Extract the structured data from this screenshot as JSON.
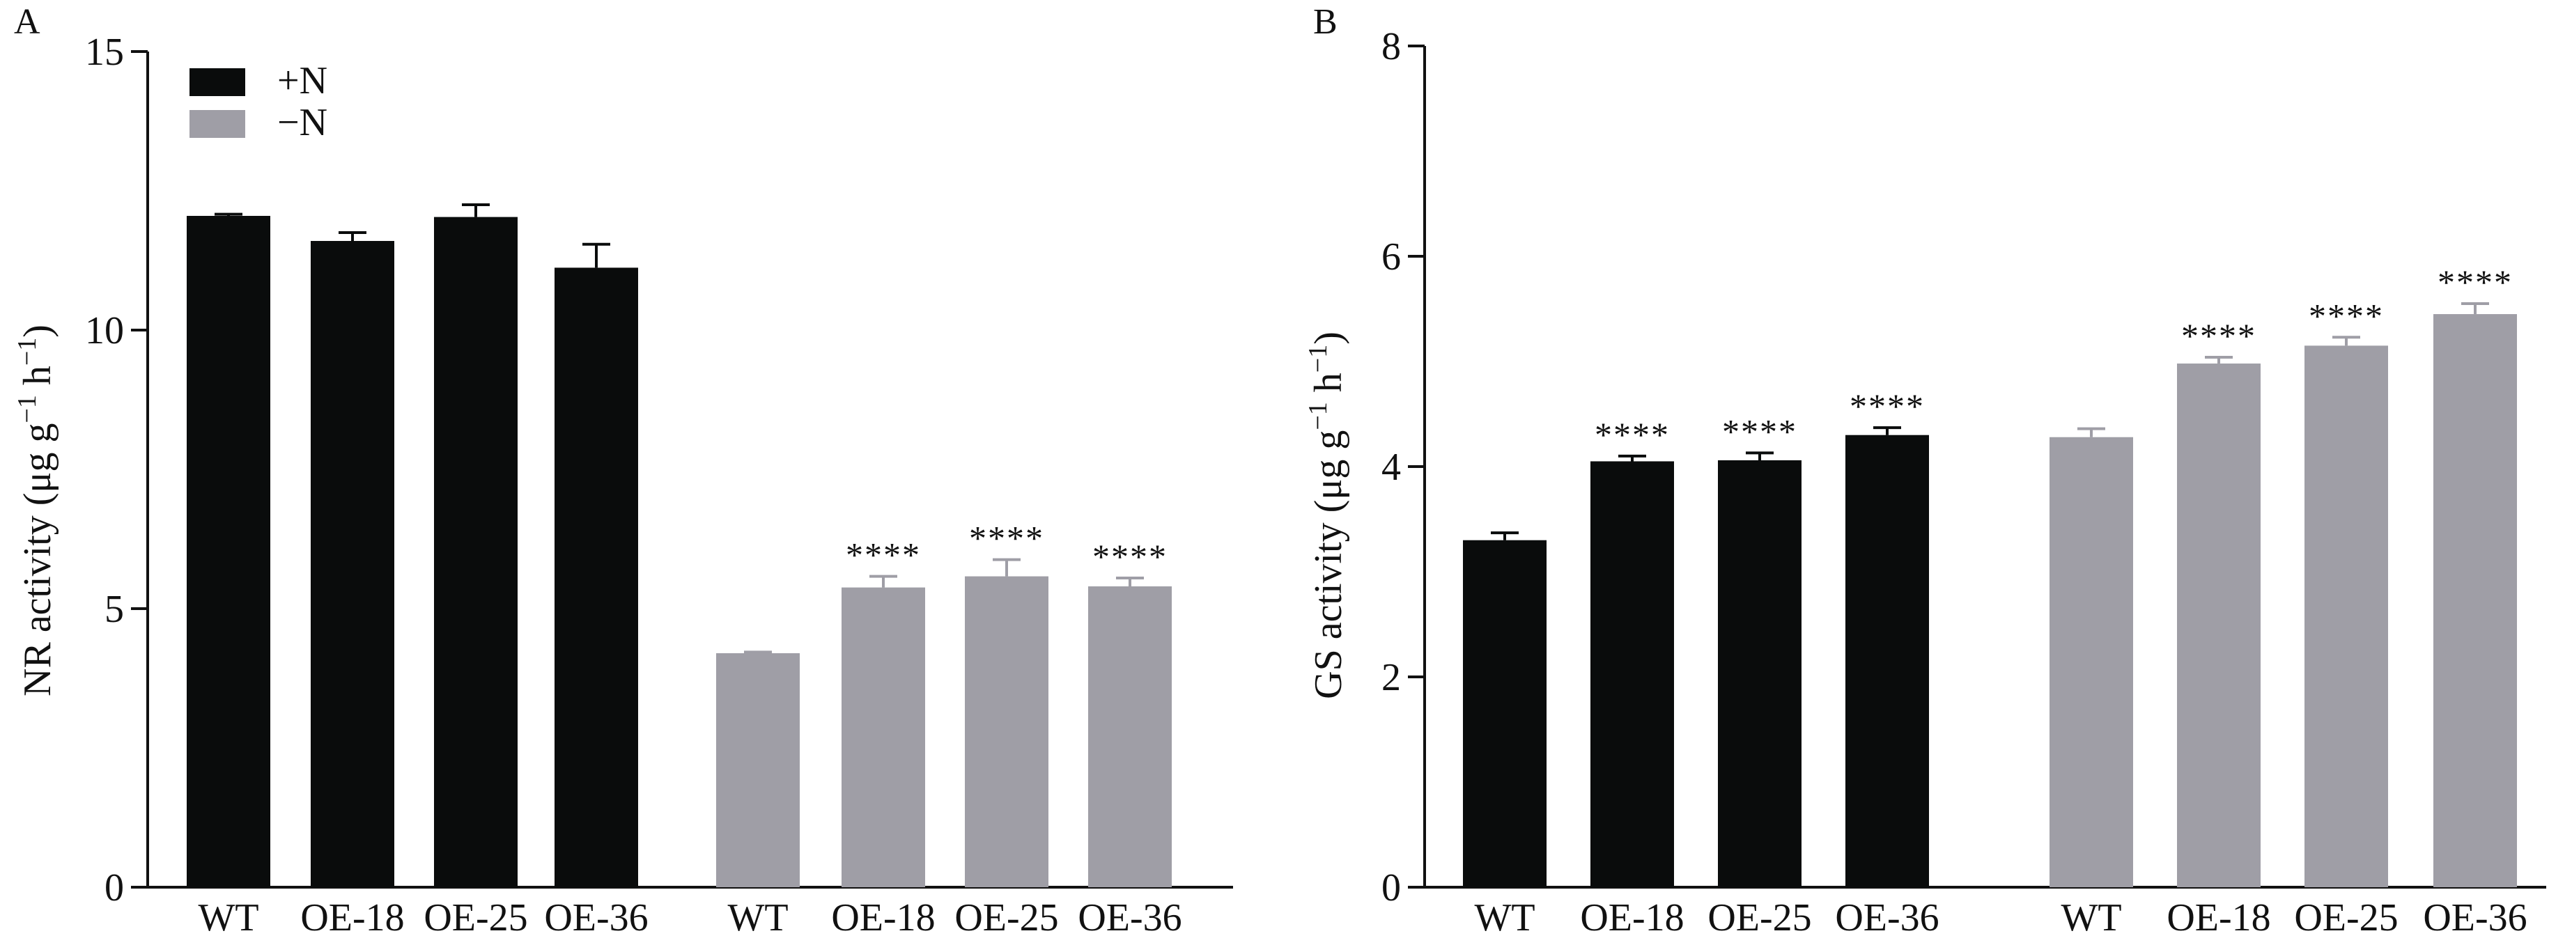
{
  "chart_data": [
    {
      "panel_label": "A",
      "type": "bar",
      "ylabel": "NR activity (μg g⁻¹ h⁻¹)",
      "ylabel_parts": {
        "main": "NR activity (μg g",
        "sup1": "−1",
        "mid": " h",
        "sup2": "−1",
        "end": ")"
      },
      "ylim": [
        0,
        15
      ],
      "yticks": [
        0,
        5,
        10,
        15
      ],
      "ytick_labels": [
        "0",
        "5",
        "10",
        "15"
      ],
      "grid": false,
      "legend_position": "top-left",
      "categories": [
        "WT",
        "OE-18",
        "OE-25",
        "OE-36"
      ],
      "series": [
        {
          "name": "+N",
          "color": "#0a0c0c",
          "values": [
            12.05,
            11.6,
            12.03,
            11.12
          ],
          "errors": [
            0.03,
            0.15,
            0.22,
            0.42
          ],
          "significance": [
            "",
            "",
            "",
            ""
          ]
        },
        {
          "name": "−N",
          "color": "#9f9ea6",
          "values": [
            4.2,
            5.38,
            5.58,
            5.4
          ],
          "errors": [
            0.02,
            0.2,
            0.3,
            0.15
          ],
          "significance": [
            "",
            "****",
            "****",
            "****"
          ]
        }
      ]
    },
    {
      "panel_label": "B",
      "type": "bar",
      "ylabel": "GS activity (μg g⁻¹ h⁻¹)",
      "ylabel_parts": {
        "main": "GS activity (μg g",
        "sup1": "−1",
        "mid": " h",
        "sup2": "−1",
        "end": ")"
      },
      "ylim": [
        0,
        8
      ],
      "yticks": [
        0,
        2,
        4,
        6,
        8
      ],
      "ytick_labels": [
        "0",
        "2",
        "4",
        "6",
        "8"
      ],
      "grid": false,
      "categories": [
        "WT",
        "OE-18",
        "OE-25",
        "OE-36"
      ],
      "series": [
        {
          "name": "+N",
          "color": "#0a0c0c",
          "values": [
            3.3,
            4.05,
            4.06,
            4.3
          ],
          "errors": [
            0.07,
            0.05,
            0.07,
            0.07
          ],
          "significance": [
            "",
            "****",
            "****",
            "****"
          ]
        },
        {
          "name": "−N",
          "color": "#9f9ea6",
          "values": [
            4.28,
            4.98,
            5.15,
            5.45
          ],
          "errors": [
            0.08,
            0.06,
            0.08,
            0.1
          ],
          "significance": [
            "",
            "****",
            "****",
            "****"
          ]
        }
      ]
    }
  ]
}
